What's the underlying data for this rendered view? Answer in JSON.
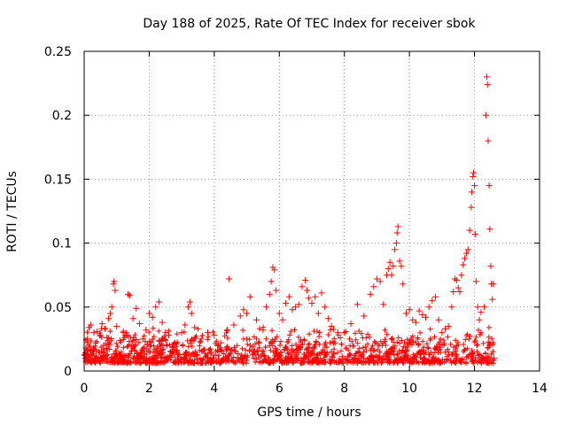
{
  "chart_data": {
    "type": "scatter",
    "title": "Day 188 of 2025, Rate Of TEC Index for receiver sbok",
    "xlabel": "GPS time / hours",
    "ylabel": "ROTI / TECUs",
    "xlim": [
      0,
      14
    ],
    "ylim": [
      0,
      0.25
    ],
    "x_ticks": [
      "0",
      "2",
      "4",
      "6",
      "8",
      "10",
      "12",
      "14"
    ],
    "y_ticks": [
      "0",
      "0.05",
      "0.1",
      "0.15",
      "0.2",
      "0.25"
    ],
    "grid": true,
    "marker": "+",
    "color": "#ff0000",
    "series": [
      {
        "name": "ROTI",
        "points": [
          [
            0.05,
            0.018
          ],
          [
            0.1,
            0.025
          ],
          [
            0.15,
            0.034
          ],
          [
            0.2,
            0.036
          ],
          [
            0.25,
            0.012
          ],
          [
            0.3,
            0.03
          ],
          [
            0.35,
            0.022
          ],
          [
            0.4,
            0.031
          ],
          [
            0.45,
            0.015
          ],
          [
            0.5,
            0.028
          ],
          [
            0.55,
            0.037
          ],
          [
            0.6,
            0.02
          ],
          [
            0.65,
            0.033
          ],
          [
            0.7,
            0.026
          ],
          [
            0.75,
            0.041
          ],
          [
            0.8,
            0.045
          ],
          [
            0.85,
            0.05
          ],
          [
            0.9,
            0.068
          ],
          [
            0.92,
            0.07
          ],
          [
            0.95,
            0.063
          ],
          [
            1.0,
            0.035
          ],
          [
            1.1,
            0.024
          ],
          [
            1.2,
            0.03
          ],
          [
            1.3,
            0.028
          ],
          [
            1.35,
            0.06
          ],
          [
            1.4,
            0.059
          ],
          [
            1.5,
            0.041
          ],
          [
            1.6,
            0.049
          ],
          [
            1.7,
            0.037
          ],
          [
            1.8,
            0.025
          ],
          [
            1.9,
            0.032
          ],
          [
            2.0,
            0.045
          ],
          [
            2.1,
            0.042
          ],
          [
            2.2,
            0.05
          ],
          [
            2.3,
            0.054
          ],
          [
            2.4,
            0.038
          ],
          [
            2.5,
            0.03
          ],
          [
            2.6,
            0.028
          ],
          [
            2.8,
            0.022
          ],
          [
            3.0,
            0.03
          ],
          [
            3.1,
            0.036
          ],
          [
            3.2,
            0.05
          ],
          [
            3.25,
            0.054
          ],
          [
            3.3,
            0.045
          ],
          [
            3.4,
            0.034
          ],
          [
            3.6,
            0.025
          ],
          [
            3.8,
            0.03
          ],
          [
            4.0,
            0.028
          ],
          [
            4.2,
            0.022
          ],
          [
            4.4,
            0.032
          ],
          [
            4.45,
            0.072
          ],
          [
            4.6,
            0.036
          ],
          [
            4.8,
            0.043
          ],
          [
            4.9,
            0.048
          ],
          [
            5.0,
            0.045
          ],
          [
            5.1,
            0.058
          ],
          [
            5.3,
            0.04
          ],
          [
            5.5,
            0.032
          ],
          [
            5.6,
            0.05
          ],
          [
            5.7,
            0.06
          ],
          [
            5.75,
            0.07
          ],
          [
            5.8,
            0.081
          ],
          [
            5.85,
            0.079
          ],
          [
            5.9,
            0.063
          ],
          [
            6.0,
            0.045
          ],
          [
            6.1,
            0.04
          ],
          [
            6.2,
            0.053
          ],
          [
            6.3,
            0.058
          ],
          [
            6.4,
            0.048
          ],
          [
            6.5,
            0.05
          ],
          [
            6.6,
            0.052
          ],
          [
            6.7,
            0.066
          ],
          [
            6.8,
            0.071
          ],
          [
            6.85,
            0.063
          ],
          [
            6.9,
            0.057
          ],
          [
            7.0,
            0.053
          ],
          [
            7.1,
            0.058
          ],
          [
            7.2,
            0.045
          ],
          [
            7.3,
            0.061
          ],
          [
            7.4,
            0.05
          ],
          [
            7.5,
            0.041
          ],
          [
            7.6,
            0.035
          ],
          [
            7.8,
            0.03
          ],
          [
            8.0,
            0.03
          ],
          [
            8.2,
            0.037
          ],
          [
            8.4,
            0.052
          ],
          [
            8.6,
            0.043
          ],
          [
            8.8,
            0.06
          ],
          [
            8.9,
            0.066
          ],
          [
            9.0,
            0.072
          ],
          [
            9.1,
            0.07
          ],
          [
            9.2,
            0.052
          ],
          [
            9.3,
            0.075
          ],
          [
            9.35,
            0.08
          ],
          [
            9.4,
            0.085
          ],
          [
            9.45,
            0.075
          ],
          [
            9.5,
            0.082
          ],
          [
            9.55,
            0.095
          ],
          [
            9.6,
            0.1
          ],
          [
            9.62,
            0.108
          ],
          [
            9.65,
            0.113
          ],
          [
            9.7,
            0.086
          ],
          [
            9.75,
            0.082
          ],
          [
            9.8,
            0.068
          ],
          [
            9.9,
            0.045
          ],
          [
            10.0,
            0.048
          ],
          [
            10.1,
            0.04
          ],
          [
            10.2,
            0.038
          ],
          [
            10.3,
            0.047
          ],
          [
            10.4,
            0.044
          ],
          [
            10.5,
            0.042
          ],
          [
            10.6,
            0.05
          ],
          [
            10.7,
            0.055
          ],
          [
            10.8,
            0.058
          ],
          [
            10.9,
            0.04
          ],
          [
            11.0,
            0.03
          ],
          [
            11.1,
            0.033
          ],
          [
            11.2,
            0.035
          ],
          [
            11.3,
            0.05
          ],
          [
            11.35,
            0.062
          ],
          [
            11.4,
            0.072
          ],
          [
            11.45,
            0.071
          ],
          [
            11.5,
            0.065
          ],
          [
            11.55,
            0.062
          ],
          [
            11.6,
            0.075
          ],
          [
            11.65,
            0.083
          ],
          [
            11.7,
            0.088
          ],
          [
            11.75,
            0.092
          ],
          [
            11.8,
            0.095
          ],
          [
            11.85,
            0.11
          ],
          [
            11.9,
            0.128
          ],
          [
            11.92,
            0.14
          ],
          [
            11.95,
            0.152
          ],
          [
            11.97,
            0.155
          ],
          [
            12.0,
            0.145
          ],
          [
            12.02,
            0.107
          ],
          [
            12.05,
            0.07
          ],
          [
            12.1,
            0.05
          ],
          [
            12.15,
            0.04
          ],
          [
            12.2,
            0.046
          ],
          [
            12.3,
            0.05
          ],
          [
            12.35,
            0.2
          ],
          [
            12.38,
            0.23
          ],
          [
            12.4,
            0.224
          ],
          [
            12.42,
            0.18
          ],
          [
            12.45,
            0.145
          ],
          [
            12.47,
            0.111
          ],
          [
            12.5,
            0.082
          ],
          [
            12.52,
            0.068
          ],
          [
            12.55,
            0.056
          ],
          [
            12.58,
            0.068
          ],
          [
            12.6,
            0.01
          ]
        ]
      }
    ]
  }
}
